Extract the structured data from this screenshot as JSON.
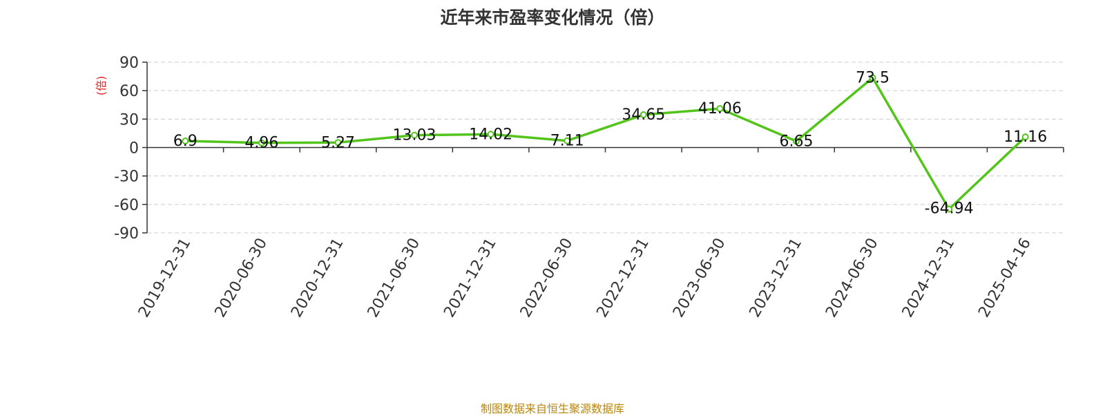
{
  "chart_data": {
    "type": "line",
    "title": "近年来市盈率变化情况（倍）",
    "ylabel": "(倍)",
    "xlabel": "",
    "categories": [
      "2019-12-31",
      "2020-06-30",
      "2020-12-31",
      "2021-06-30",
      "2021-12-31",
      "2022-06-30",
      "2022-12-31",
      "2023-06-30",
      "2023-12-31",
      "2024-06-30",
      "2024-12-31",
      "2025-04-16"
    ],
    "values": [
      6.9,
      4.96,
      5.27,
      13.03,
      14.02,
      7.11,
      34.65,
      41.06,
      6.65,
      73.5,
      -64.94,
      11.16
    ],
    "data_labels": [
      "6.9",
      "4.96",
      "5.27",
      "13.03",
      "14.02",
      "7.11",
      "34.65",
      "41.06",
      "6.65",
      "73.5",
      "-64.94",
      "11.16"
    ],
    "ylim": [
      -90,
      90
    ],
    "yticks": [
      90,
      60,
      30,
      0,
      -30,
      -60,
      -90
    ],
    "ytick_labels": [
      "90",
      "60",
      "30",
      "0",
      "-30",
      "-60",
      "-90"
    ],
    "grid": true,
    "legend": "none",
    "colors": {
      "line": "#52c41a",
      "ylabel": "#e02020",
      "source": "#b8860b",
      "grid": "#cccccc",
      "axis": "#333333"
    }
  },
  "source": "制图数据来自恒生聚源数据库"
}
